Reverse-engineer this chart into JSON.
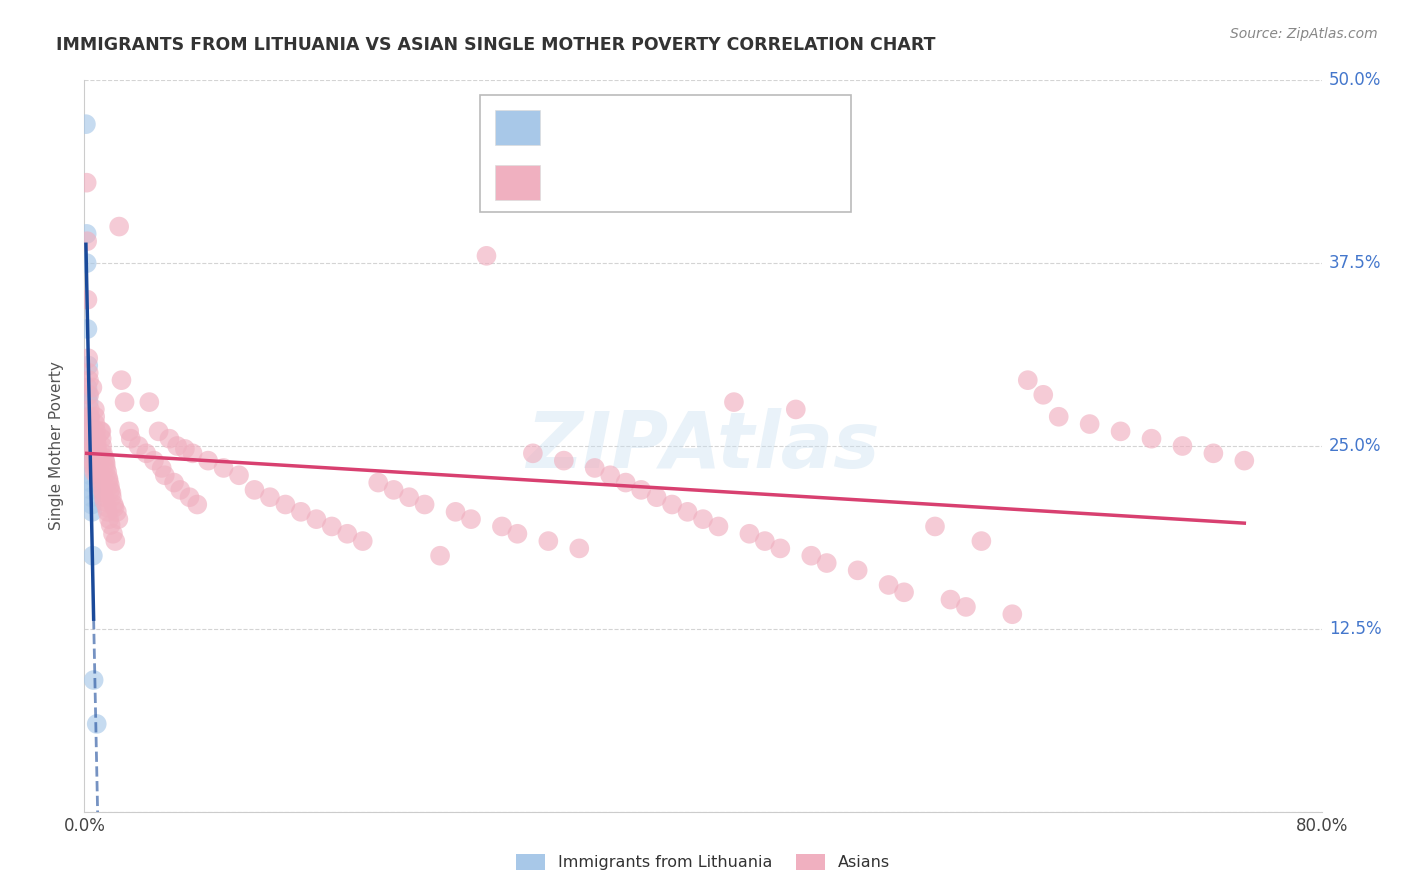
{
  "title": "IMMIGRANTS FROM LITHUANIA VS ASIAN SINGLE MOTHER POVERTY CORRELATION CHART",
  "source": "Source: ZipAtlas.com",
  "ylabel": "Single Mother Poverty",
  "xlim": [
    0.0,
    0.8
  ],
  "ylim": [
    0.0,
    0.5
  ],
  "legend_label1": "Immigrants from Lithuania",
  "legend_label2": "Asians",
  "color_blue": "#a8c8e8",
  "color_pink": "#f0b0c0",
  "line_blue": "#1a4a9a",
  "line_pink": "#d84070",
  "background": "#ffffff",
  "grid_color": "#d0d0d0",
  "blue_dots": [
    [
      0.001,
      0.47
    ],
    [
      0.0015,
      0.395
    ],
    [
      0.0015,
      0.375
    ],
    [
      0.002,
      0.33
    ],
    [
      0.002,
      0.29
    ],
    [
      0.0025,
      0.305
    ],
    [
      0.0025,
      0.285
    ],
    [
      0.0028,
      0.28
    ],
    [
      0.003,
      0.27
    ],
    [
      0.003,
      0.265
    ],
    [
      0.003,
      0.26
    ],
    [
      0.0035,
      0.255
    ],
    [
      0.0035,
      0.25
    ],
    [
      0.0035,
      0.248
    ],
    [
      0.0038,
      0.245
    ],
    [
      0.0038,
      0.24
    ],
    [
      0.004,
      0.238
    ],
    [
      0.004,
      0.23
    ],
    [
      0.0042,
      0.225
    ],
    [
      0.0045,
      0.22
    ],
    [
      0.0045,
      0.215
    ],
    [
      0.0048,
      0.21
    ],
    [
      0.005,
      0.205
    ],
    [
      0.0055,
      0.175
    ],
    [
      0.006,
      0.09
    ],
    [
      0.008,
      0.06
    ]
  ],
  "pink_dots": [
    [
      0.0015,
      0.43
    ],
    [
      0.0018,
      0.39
    ],
    [
      0.002,
      0.35
    ],
    [
      0.0025,
      0.31
    ],
    [
      0.0028,
      0.3
    ],
    [
      0.003,
      0.295
    ],
    [
      0.0032,
      0.285
    ],
    [
      0.0035,
      0.275
    ],
    [
      0.0038,
      0.27
    ],
    [
      0.004,
      0.265
    ],
    [
      0.0042,
      0.26
    ],
    [
      0.0045,
      0.255
    ],
    [
      0.0048,
      0.25
    ],
    [
      0.005,
      0.248
    ],
    [
      0.0052,
      0.29
    ],
    [
      0.0055,
      0.245
    ],
    [
      0.0058,
      0.24
    ],
    [
      0.006,
      0.238
    ],
    [
      0.0062,
      0.235
    ],
    [
      0.0065,
      0.232
    ],
    [
      0.0068,
      0.275
    ],
    [
      0.007,
      0.27
    ],
    [
      0.0072,
      0.265
    ],
    [
      0.0075,
      0.26
    ],
    [
      0.0078,
      0.255
    ],
    [
      0.008,
      0.252
    ],
    [
      0.0082,
      0.248
    ],
    [
      0.0085,
      0.245
    ],
    [
      0.0088,
      0.242
    ],
    [
      0.009,
      0.24
    ],
    [
      0.0092,
      0.238
    ],
    [
      0.0095,
      0.235
    ],
    [
      0.0098,
      0.23
    ],
    [
      0.01,
      0.228
    ],
    [
      0.0105,
      0.26
    ],
    [
      0.0108,
      0.225
    ],
    [
      0.011,
      0.26
    ],
    [
      0.0112,
      0.255
    ],
    [
      0.0115,
      0.25
    ],
    [
      0.0118,
      0.22
    ],
    [
      0.012,
      0.245
    ],
    [
      0.0122,
      0.218
    ],
    [
      0.0125,
      0.215
    ],
    [
      0.0128,
      0.242
    ],
    [
      0.013,
      0.212
    ],
    [
      0.0135,
      0.24
    ],
    [
      0.0138,
      0.238
    ],
    [
      0.014,
      0.235
    ],
    [
      0.0145,
      0.208
    ],
    [
      0.0148,
      0.232
    ],
    [
      0.015,
      0.205
    ],
    [
      0.0155,
      0.228
    ],
    [
      0.0158,
      0.226
    ],
    [
      0.016,
      0.2
    ],
    [
      0.0165,
      0.223
    ],
    [
      0.0168,
      0.22
    ],
    [
      0.017,
      0.196
    ],
    [
      0.0175,
      0.218
    ],
    [
      0.0178,
      0.215
    ],
    [
      0.0185,
      0.19
    ],
    [
      0.019,
      0.21
    ],
    [
      0.0195,
      0.208
    ],
    [
      0.02,
      0.185
    ],
    [
      0.021,
      0.205
    ],
    [
      0.022,
      0.2
    ],
    [
      0.0225,
      0.4
    ],
    [
      0.024,
      0.295
    ],
    [
      0.026,
      0.28
    ],
    [
      0.029,
      0.26
    ],
    [
      0.03,
      0.255
    ],
    [
      0.035,
      0.25
    ],
    [
      0.04,
      0.245
    ],
    [
      0.042,
      0.28
    ],
    [
      0.045,
      0.24
    ],
    [
      0.048,
      0.26
    ],
    [
      0.05,
      0.235
    ],
    [
      0.052,
      0.23
    ],
    [
      0.055,
      0.255
    ],
    [
      0.058,
      0.225
    ],
    [
      0.06,
      0.25
    ],
    [
      0.062,
      0.22
    ],
    [
      0.065,
      0.248
    ],
    [
      0.068,
      0.215
    ],
    [
      0.07,
      0.245
    ],
    [
      0.073,
      0.21
    ],
    [
      0.08,
      0.24
    ],
    [
      0.09,
      0.235
    ],
    [
      0.1,
      0.23
    ],
    [
      0.11,
      0.22
    ],
    [
      0.12,
      0.215
    ],
    [
      0.13,
      0.21
    ],
    [
      0.14,
      0.205
    ],
    [
      0.15,
      0.2
    ],
    [
      0.16,
      0.195
    ],
    [
      0.17,
      0.19
    ],
    [
      0.18,
      0.185
    ],
    [
      0.19,
      0.225
    ],
    [
      0.2,
      0.22
    ],
    [
      0.21,
      0.215
    ],
    [
      0.22,
      0.21
    ],
    [
      0.23,
      0.175
    ],
    [
      0.24,
      0.205
    ],
    [
      0.25,
      0.2
    ],
    [
      0.26,
      0.38
    ],
    [
      0.27,
      0.195
    ],
    [
      0.28,
      0.19
    ],
    [
      0.29,
      0.245
    ],
    [
      0.3,
      0.185
    ],
    [
      0.31,
      0.24
    ],
    [
      0.32,
      0.18
    ],
    [
      0.33,
      0.235
    ],
    [
      0.34,
      0.23
    ],
    [
      0.35,
      0.225
    ],
    [
      0.36,
      0.22
    ],
    [
      0.37,
      0.215
    ],
    [
      0.38,
      0.21
    ],
    [
      0.39,
      0.205
    ],
    [
      0.4,
      0.2
    ],
    [
      0.41,
      0.195
    ],
    [
      0.42,
      0.28
    ],
    [
      0.43,
      0.19
    ],
    [
      0.44,
      0.185
    ],
    [
      0.45,
      0.18
    ],
    [
      0.46,
      0.275
    ],
    [
      0.47,
      0.175
    ],
    [
      0.48,
      0.17
    ],
    [
      0.5,
      0.165
    ],
    [
      0.52,
      0.155
    ],
    [
      0.53,
      0.15
    ],
    [
      0.55,
      0.195
    ],
    [
      0.56,
      0.145
    ],
    [
      0.57,
      0.14
    ],
    [
      0.58,
      0.185
    ],
    [
      0.6,
      0.135
    ],
    [
      0.61,
      0.295
    ],
    [
      0.62,
      0.285
    ],
    [
      0.63,
      0.27
    ],
    [
      0.65,
      0.265
    ],
    [
      0.67,
      0.26
    ],
    [
      0.69,
      0.255
    ],
    [
      0.71,
      0.25
    ],
    [
      0.73,
      0.245
    ],
    [
      0.75,
      0.24
    ]
  ]
}
